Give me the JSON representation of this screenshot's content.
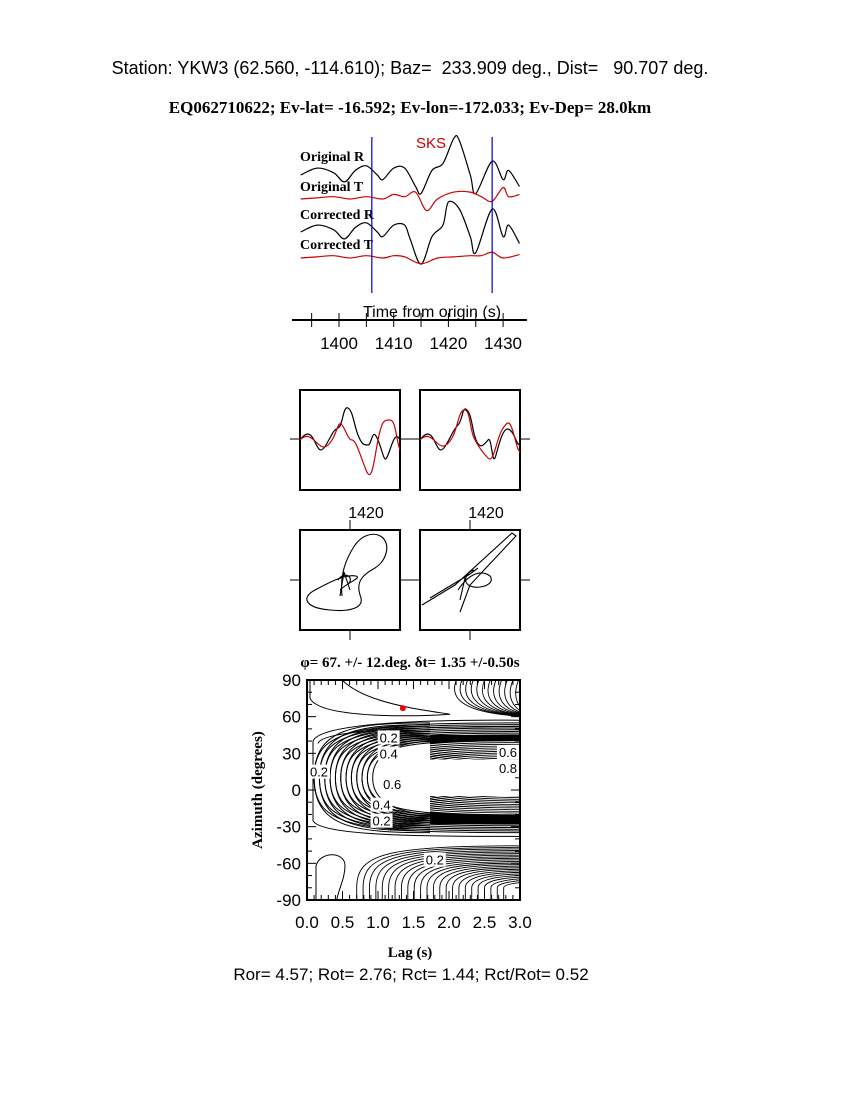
{
  "header": {
    "station_line": "Station: YKW3 (62.560, -114.610); Baz=  233.909 deg., Dist=   90.707 deg.",
    "event_line": "EQ062710622; Ev-lat= -16.592; Ev-lon=-172.033; Ev-Dep= 28.0km"
  },
  "footer": {
    "ratios": "Ror= 4.57; Rot= 2.76; Rct= 1.44; Rct/Rot= 0.52"
  },
  "colors": {
    "black_trace": "#000000",
    "red_trace": "#cc0000",
    "window_lines": "#0000cc"
  },
  "chart_data": [
    {
      "type": "line",
      "title": "",
      "phase_label": "SKS",
      "xlabel": "Time from origin (s)",
      "xlim": [
        1393,
        1433
      ],
      "xticks": [
        "1400",
        "1410",
        "1420",
        "1430"
      ],
      "window_times": [
        1406,
        1428
      ],
      "series": [
        {
          "name": "Original R",
          "color": "#000000",
          "t": [
            1393,
            1396,
            1399,
            1401,
            1403,
            1405,
            1407,
            1408,
            1410,
            1412,
            1414,
            1415,
            1417,
            1419,
            1421,
            1422,
            1424,
            1425,
            1428,
            1430,
            1431,
            1433
          ],
          "a": [
            0,
            0.3,
            0.1,
            -0.3,
            0.2,
            0.4,
            0,
            -0.2,
            0.3,
            0.3,
            -0.5,
            -0.8,
            0.2,
            0.5,
            1.6,
            1.5,
            0,
            -0.8,
            0.6,
            -0.2,
            0.2,
            -0.5
          ]
        },
        {
          "name": "Original T",
          "color": "#cc0000",
          "t": [
            1393,
            1396,
            1399,
            1402,
            1405,
            1408,
            1410,
            1412,
            1414,
            1416,
            1418,
            1421,
            1424,
            1426,
            1428,
            1430,
            1431,
            1433
          ],
          "a": [
            0,
            0.05,
            0.1,
            0,
            0.1,
            0,
            0.2,
            0.1,
            0.3,
            -0.5,
            0,
            0.3,
            0.3,
            0.1,
            -0.1,
            0.5,
            0.1,
            0.2
          ]
        },
        {
          "name": "Corrected R",
          "color": "#000000",
          "t": [
            1393,
            1396,
            1399,
            1401,
            1403,
            1405,
            1407,
            1408,
            1410,
            1412,
            1413,
            1415,
            1417,
            1419,
            1420,
            1422,
            1424,
            1425,
            1428,
            1430,
            1431,
            1433
          ],
          "a": [
            0,
            0.3,
            0.1,
            -0.3,
            0.2,
            0.4,
            0,
            -0.2,
            0.3,
            0.3,
            -0.3,
            -1.4,
            -0.2,
            0.3,
            1.3,
            1.0,
            -0.2,
            -0.9,
            1.0,
            -0.2,
            0.3,
            -0.5
          ]
        },
        {
          "name": "Corrected T",
          "color": "#cc0000",
          "t": [
            1393,
            1396,
            1399,
            1402,
            1405,
            1408,
            1410,
            1412,
            1415,
            1418,
            1421,
            1424,
            1426,
            1428,
            1430,
            1433
          ],
          "a": [
            0,
            0.05,
            0.1,
            0,
            0.1,
            0,
            0.1,
            0.05,
            -0.25,
            0,
            0.05,
            0.1,
            0.1,
            0.25,
            0,
            0.15
          ]
        }
      ]
    },
    {
      "type": "line",
      "title": "",
      "xticks": [
        "1420"
      ],
      "panels": [
        "original",
        "corrected"
      ]
    },
    {
      "type": "heatmap",
      "title": "φ= 67. +/- 12.deg. δt= 1.35 +/-0.50s",
      "xlabel": "Lag (s)",
      "ylabel": "Azimuth (degrees)",
      "xlim": [
        0,
        3
      ],
      "ylim": [
        -90,
        90
      ],
      "xticks": [
        "0.0",
        "0.5",
        "1.0",
        "1.5",
        "2.0",
        "2.5",
        "3.0"
      ],
      "yticks": [
        "90",
        "60",
        "30",
        "0",
        "-30",
        "-60",
        "-90"
      ],
      "best_fit": {
        "lag": 1.35,
        "azimuth": 67
      },
      "contour_labels": [
        {
          "text": "0.2",
          "lag": 1.15,
          "azimuth": 43
        },
        {
          "text": "0.4",
          "lag": 1.15,
          "azimuth": 33
        },
        {
          "text": "0.2",
          "lag": 0.13,
          "azimuth": 15
        },
        {
          "text": "0.6",
          "lag": 1.2,
          "azimuth": 5
        },
        {
          "text": "0.4",
          "lag": 1.05,
          "azimuth": -12
        },
        {
          "text": "0.2",
          "lag": 1.05,
          "azimuth": -22
        },
        {
          "text": "0.6",
          "lag": 2.95,
          "azimuth": 31
        },
        {
          "text": "0.8",
          "lag": 2.95,
          "azimuth": 23
        },
        {
          "text": "0.2",
          "lag": 1.8,
          "azimuth": -57
        }
      ]
    }
  ]
}
